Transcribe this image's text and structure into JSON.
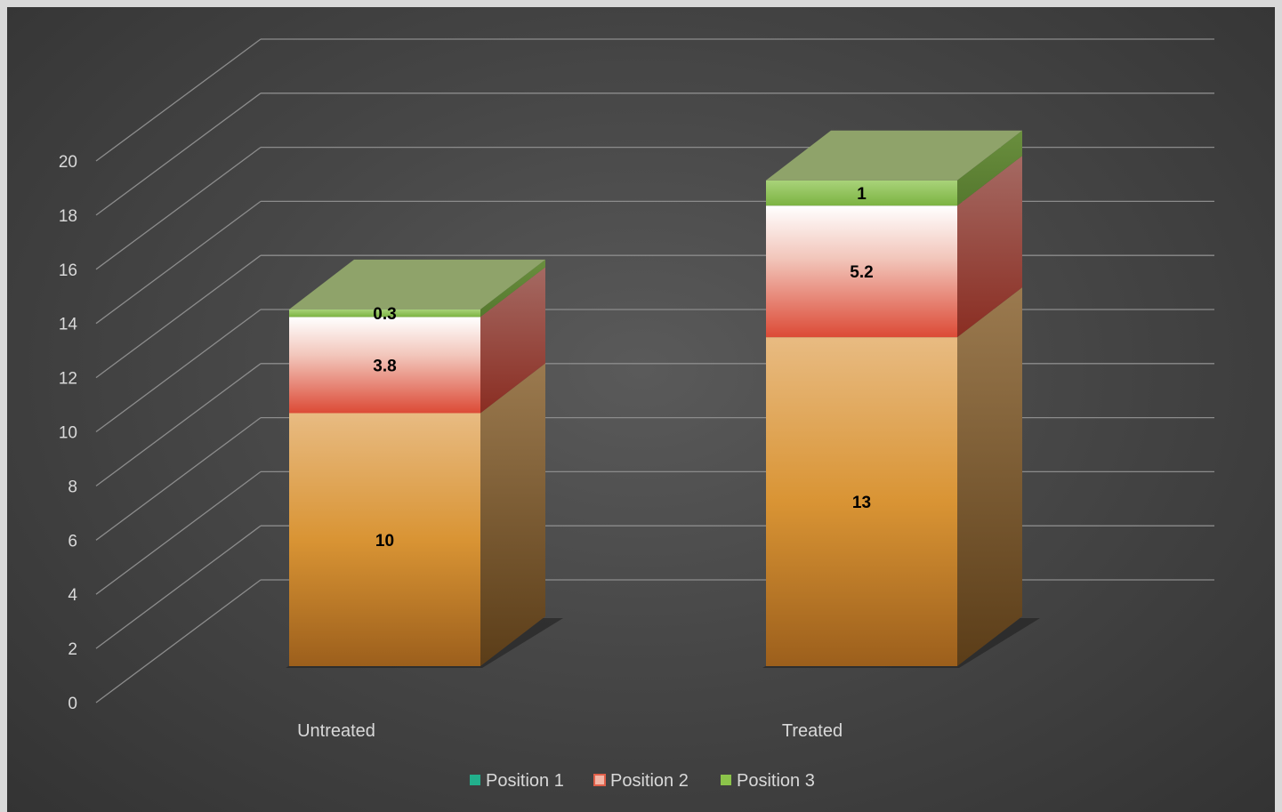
{
  "chart_data": {
    "type": "bar",
    "stacked": true,
    "three_d": true,
    "title": "",
    "xlabel": "",
    "ylabel": "",
    "categories": [
      "Untreated",
      "Treated"
    ],
    "ylim": [
      0,
      20
    ],
    "yticks": [
      "0",
      "2",
      "4",
      "6",
      "8",
      "10",
      "12",
      "14",
      "16",
      "18",
      "20"
    ],
    "grid": true,
    "legend": "bottom",
    "series": [
      {
        "name": "Position 1",
        "values": [
          10,
          13
        ],
        "labels": [
          "10",
          "13"
        ],
        "color": "#e09a3a",
        "legend_color": "#22b08c"
      },
      {
        "name": "Position 2",
        "values": [
          3.8,
          5.2
        ],
        "labels": [
          "3.8",
          "5.2"
        ],
        "color": "#e0604a",
        "legend_color": "#f3b5a6"
      },
      {
        "name": "Position 3",
        "values": [
          0.3,
          1
        ],
        "labels": [
          "0.3",
          "1"
        ],
        "color": "#8bc34a",
        "legend_color": "#8bc34a"
      }
    ]
  }
}
